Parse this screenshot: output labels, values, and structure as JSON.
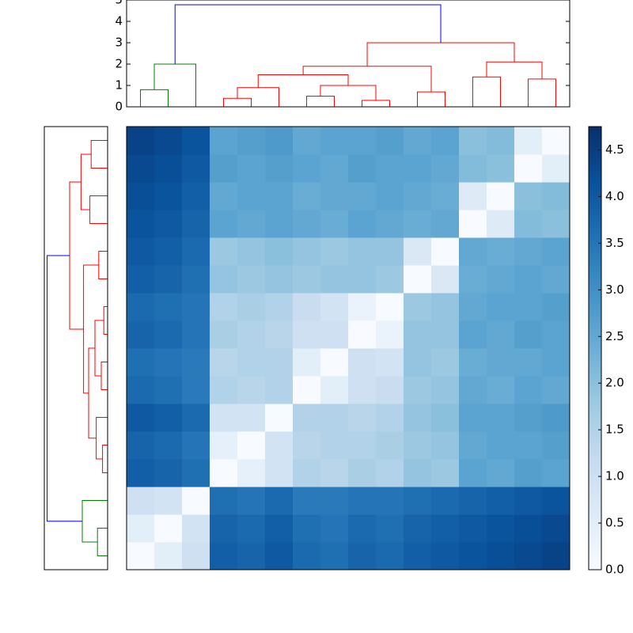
{
  "chart_data": {
    "type": "clustermap",
    "dendrogram": {
      "ylim": [
        0,
        5
      ],
      "yticks": [
        0,
        1,
        2,
        3,
        4,
        5
      ],
      "leaf_span": [
        0,
        160
      ],
      "links": [
        {
          "x": [
            5,
            5,
            15,
            15
          ],
          "y": [
            0,
            0.8,
            0.8,
            0
          ],
          "color": "#008000"
        },
        {
          "x": [
            10,
            10,
            25,
            25
          ],
          "y": [
            0.8,
            2.0,
            2.0,
            0
          ],
          "color": "#008000"
        },
        {
          "x": [
            35,
            35,
            45,
            45
          ],
          "y": [
            0,
            0.4,
            0.4,
            0
          ],
          "color": "#ff0000"
        },
        {
          "x": [
            40,
            40,
            55,
            55
          ],
          "y": [
            0.4,
            0.9,
            0.9,
            0
          ],
          "color": "#ff0000"
        },
        {
          "x": [
            65,
            65,
            75,
            75
          ],
          "y": [
            0,
            0.5,
            0.5,
            0
          ],
          "color": "#ff0000"
        },
        {
          "x": [
            85,
            85,
            95,
            95
          ],
          "y": [
            0,
            0.3,
            0.3,
            0
          ],
          "color": "#ff0000"
        },
        {
          "x": [
            70,
            70,
            90,
            90
          ],
          "y": [
            0.5,
            1.0,
            1.0,
            0.3
          ],
          "color": "#ff0000"
        },
        {
          "x": [
            47.5,
            47.5,
            80,
            80
          ],
          "y": [
            0.9,
            1.5,
            1.5,
            1.0
          ],
          "color": "#ff0000"
        },
        {
          "x": [
            105,
            105,
            115,
            115
          ],
          "y": [
            0,
            0.7,
            0.7,
            0
          ],
          "color": "#ff0000"
        },
        {
          "x": [
            63.75,
            63.75,
            110,
            110
          ],
          "y": [
            1.5,
            1.9,
            1.9,
            0.7
          ],
          "color": "#ff0000"
        },
        {
          "x": [
            125,
            125,
            135,
            135
          ],
          "y": [
            0,
            1.4,
            1.4,
            0
          ],
          "color": "#ff0000"
        },
        {
          "x": [
            145,
            145,
            155,
            155
          ],
          "y": [
            0,
            1.3,
            1.3,
            0
          ],
          "color": "#ff0000"
        },
        {
          "x": [
            130,
            130,
            150,
            150
          ],
          "y": [
            1.4,
            2.1,
            2.1,
            1.3
          ],
          "color": "#ff0000"
        },
        {
          "x": [
            86.875,
            86.875,
            140,
            140
          ],
          "y": [
            1.9,
            3.0,
            3.0,
            2.1
          ],
          "color": "#ff0000"
        },
        {
          "x": [
            17.5,
            17.5,
            113.4375,
            113.4375
          ],
          "y": [
            2.0,
            4.78,
            4.78,
            3.0
          ],
          "color": "#0000ff"
        }
      ]
    },
    "heatmap": {
      "clim": [
        0,
        4.75
      ],
      "colormap": [
        "#f7fbff",
        "#deebf7",
        "#c6dbef",
        "#9ecae1",
        "#6baed6",
        "#4292c6",
        "#2171b5",
        "#08519c",
        "#08306b"
      ],
      "colorbar_ticks": [
        {
          "value": 0,
          "label": "0.0"
        },
        0.5,
        {
          "value": 1,
          "label": "1.0"
        },
        1.5,
        {
          "value": 2,
          "label": "2.0"
        },
        2.5,
        {
          "value": 3,
          "label": "3.0"
        },
        3.5,
        {
          "value": 4,
          "label": "4.0"
        },
        4.5
      ],
      "values": [
        [
          0,
          0.5,
          1.0,
          3.9,
          3.8,
          4.0,
          3.7,
          3.6,
          3.8,
          3.7,
          3.9,
          4.0,
          4.1,
          4.2,
          4.3,
          4.4
        ],
        [
          0.5,
          0,
          0.9,
          3.8,
          3.7,
          3.9,
          3.6,
          3.5,
          3.7,
          3.6,
          3.8,
          3.9,
          4.0,
          4.1,
          4.2,
          4.3
        ],
        [
          1.0,
          0.9,
          0,
          3.6,
          3.5,
          3.7,
          3.4,
          3.4,
          3.5,
          3.5,
          3.6,
          3.7,
          3.8,
          3.9,
          4.0,
          4.1
        ],
        [
          3.9,
          3.8,
          3.6,
          0,
          0.4,
          0.9,
          1.5,
          1.4,
          1.6,
          1.5,
          1.9,
          1.8,
          2.6,
          2.5,
          2.7,
          2.6
        ],
        [
          3.8,
          3.7,
          3.5,
          0.4,
          0,
          0.9,
          1.4,
          1.5,
          1.5,
          1.6,
          1.8,
          1.9,
          2.5,
          2.6,
          2.6,
          2.7
        ],
        [
          4.0,
          3.9,
          3.7,
          0.9,
          0.9,
          0,
          1.5,
          1.5,
          1.4,
          1.5,
          1.9,
          2.0,
          2.6,
          2.6,
          2.7,
          2.8
        ],
        [
          3.7,
          3.6,
          3.4,
          1.5,
          1.4,
          1.5,
          0,
          0.5,
          1.0,
          1.1,
          1.8,
          1.9,
          2.5,
          2.4,
          2.6,
          2.5
        ],
        [
          3.6,
          3.5,
          3.4,
          1.4,
          1.5,
          1.5,
          0.5,
          0,
          1.0,
          0.9,
          1.9,
          1.8,
          2.4,
          2.5,
          2.5,
          2.6
        ],
        [
          3.8,
          3.7,
          3.5,
          1.6,
          1.5,
          1.4,
          1.0,
          1.0,
          0,
          0.3,
          1.9,
          1.9,
          2.6,
          2.5,
          2.7,
          2.6
        ],
        [
          3.7,
          3.6,
          3.5,
          1.5,
          1.6,
          1.5,
          1.1,
          0.9,
          0.3,
          0,
          1.8,
          1.9,
          2.5,
          2.6,
          2.6,
          2.7
        ],
        [
          3.9,
          3.8,
          3.6,
          1.9,
          1.8,
          1.9,
          1.8,
          1.9,
          1.9,
          1.8,
          0,
          0.7,
          2.4,
          2.5,
          2.6,
          2.5
        ],
        [
          4.0,
          3.9,
          3.7,
          1.8,
          1.9,
          2.0,
          1.9,
          1.8,
          1.9,
          1.9,
          0.7,
          0,
          2.5,
          2.4,
          2.5,
          2.6
        ],
        [
          4.1,
          4.0,
          3.8,
          2.6,
          2.5,
          2.6,
          2.5,
          2.4,
          2.6,
          2.5,
          2.4,
          2.5,
          0,
          0.6,
          2.1,
          2.0
        ],
        [
          4.2,
          4.1,
          3.9,
          2.5,
          2.6,
          2.6,
          2.4,
          2.5,
          2.5,
          2.6,
          2.5,
          2.4,
          0.6,
          0,
          2.0,
          2.1
        ],
        [
          4.3,
          4.2,
          4.0,
          2.7,
          2.6,
          2.7,
          2.6,
          2.5,
          2.7,
          2.6,
          2.6,
          2.5,
          2.1,
          2.0,
          0,
          0.5
        ],
        [
          4.4,
          4.3,
          4.1,
          2.6,
          2.7,
          2.8,
          2.5,
          2.6,
          2.6,
          2.7,
          2.5,
          2.6,
          2.0,
          2.1,
          0.5,
          0
        ]
      ]
    }
  }
}
